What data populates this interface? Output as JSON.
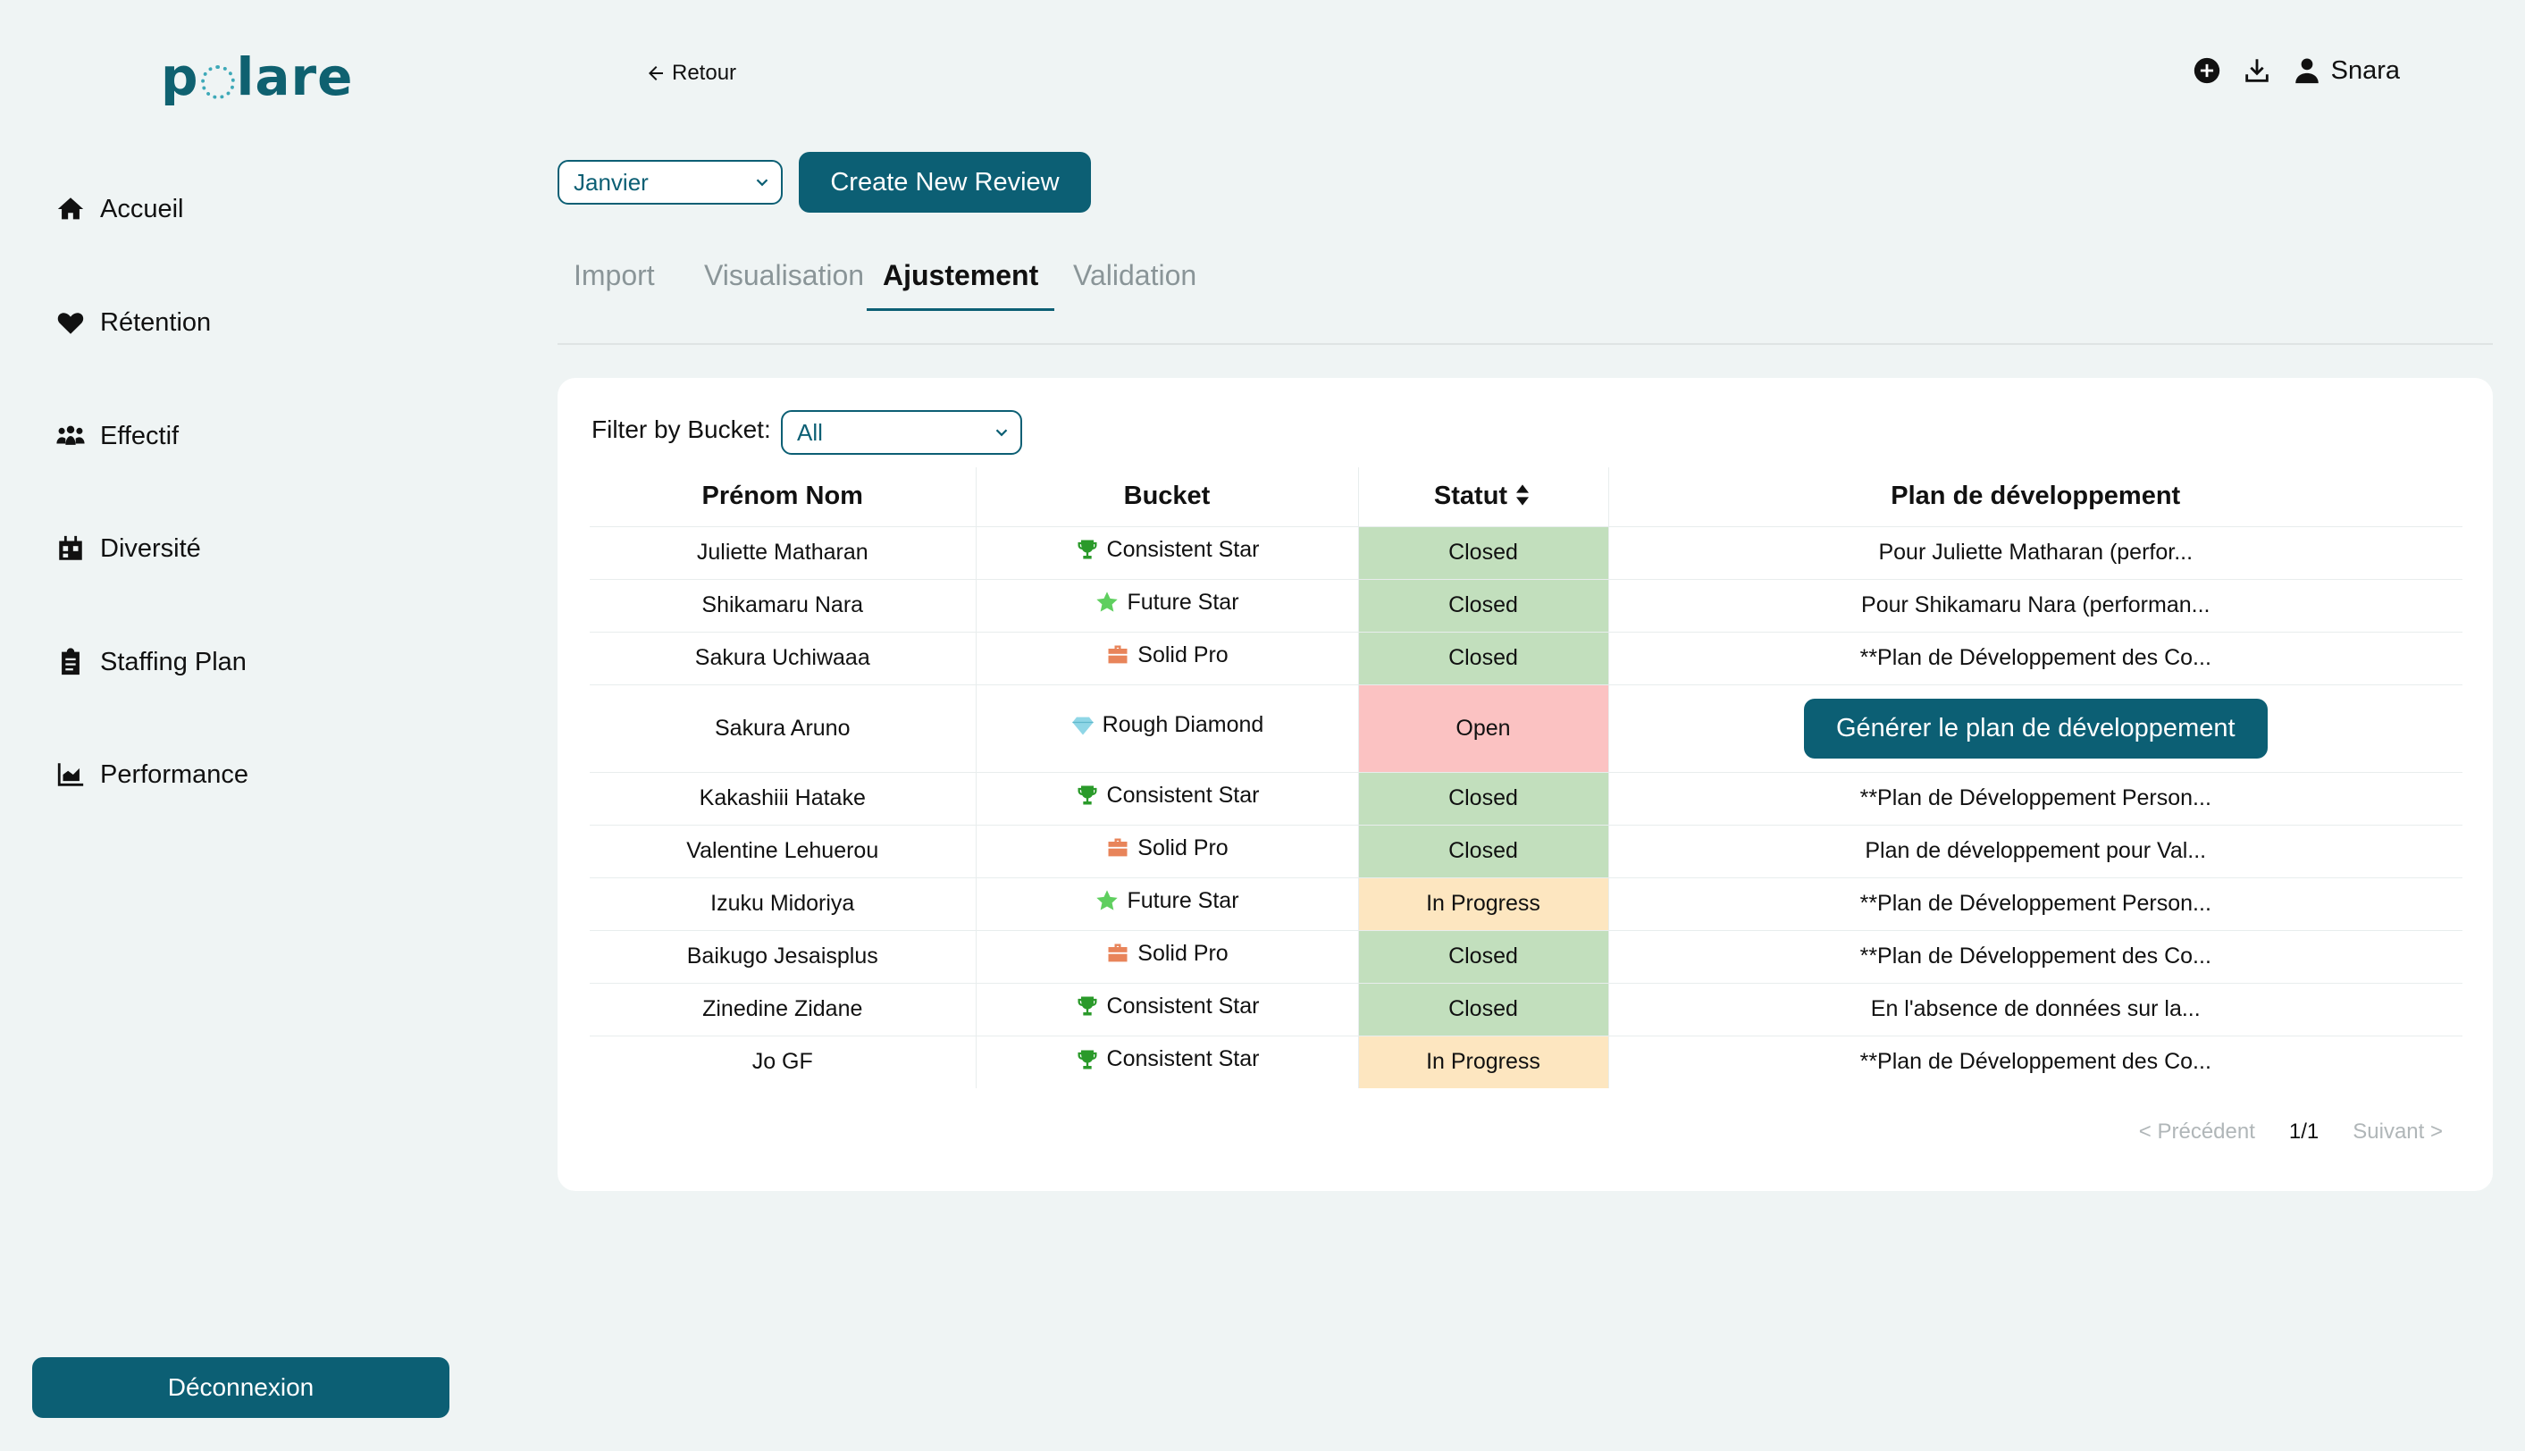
{
  "app": {
    "logo_text_left": "p",
    "logo_text_right": "lare"
  },
  "sidebar": {
    "items": [
      {
        "label": "Accueil",
        "icon": "home-icon"
      },
      {
        "label": "Rétention",
        "icon": "heart-icon"
      },
      {
        "label": "Effectif",
        "icon": "users-icon"
      },
      {
        "label": "Diversité",
        "icon": "calendar-icon"
      },
      {
        "label": "Staffing Plan",
        "icon": "clipboard-icon"
      },
      {
        "label": "Performance",
        "icon": "chart-icon"
      }
    ],
    "logout_label": "Déconnexion"
  },
  "header": {
    "back_label": "Retour",
    "user_name": "Snara"
  },
  "controls": {
    "month_value": "Janvier",
    "create_label": "Create New Review"
  },
  "tabs": [
    {
      "label": "Import",
      "active": false
    },
    {
      "label": "Visualisation",
      "active": false
    },
    {
      "label": "Ajustement",
      "active": true
    },
    {
      "label": "Validation",
      "active": false
    }
  ],
  "filter": {
    "label": "Filter by Bucket:",
    "value": "All"
  },
  "table": {
    "headers": [
      "Prénom Nom",
      "Bucket",
      "Statut",
      "Plan de développement"
    ],
    "rows": [
      {
        "name": "Juliette Matharan",
        "bucket": "Consistent Star",
        "bucket_icon": "trophy-icon",
        "status": "Closed",
        "plan": "Pour Juliette Matharan (perfor..."
      },
      {
        "name": "Shikamaru Nara",
        "bucket": "Future Star",
        "bucket_icon": "star-icon",
        "status": "Closed",
        "plan": "Pour Shikamaru Nara (performan..."
      },
      {
        "name": "Sakura Uchiwaaa",
        "bucket": "Solid Pro",
        "bucket_icon": "briefcase-icon",
        "status": "Closed",
        "plan": "**Plan de Développement des Co..."
      },
      {
        "name": "Sakura Aruno",
        "bucket": "Rough Diamond",
        "bucket_icon": "diamond-icon",
        "status": "Open",
        "plan": "",
        "plan_button": "Générer le plan de développement"
      },
      {
        "name": "Kakashiii Hatake",
        "bucket": "Consistent Star",
        "bucket_icon": "trophy-icon",
        "status": "Closed",
        "plan": "**Plan de Développement Person..."
      },
      {
        "name": "Valentine Lehuerou",
        "bucket": "Solid Pro",
        "bucket_icon": "briefcase-icon",
        "status": "Closed",
        "plan": "Plan de développement pour Val..."
      },
      {
        "name": "Izuku Midoriya",
        "bucket": "Future Star",
        "bucket_icon": "star-icon",
        "status": "In Progress",
        "plan": "**Plan de Développement Person..."
      },
      {
        "name": "Baikugo Jesaisplus",
        "bucket": "Solid Pro",
        "bucket_icon": "briefcase-icon",
        "status": "Closed",
        "plan": "**Plan de Développement des Co..."
      },
      {
        "name": "Zinedine Zidane",
        "bucket": "Consistent Star",
        "bucket_icon": "trophy-icon",
        "status": "Closed",
        "plan": "En l'absence de données sur la..."
      },
      {
        "name": "Jo GF",
        "bucket": "Consistent Star",
        "bucket_icon": "trophy-icon",
        "status": "In Progress",
        "plan": "**Plan de Développement des Co..."
      }
    ]
  },
  "pagination": {
    "prev": "< Précédent",
    "page": "1/1",
    "next": "Suivant >"
  },
  "colors": {
    "primary": "#0c5f74",
    "closed": "#c2dfbd",
    "open": "#fbc2c2",
    "in_progress": "#fde6c0",
    "background": "#eff4f4"
  }
}
